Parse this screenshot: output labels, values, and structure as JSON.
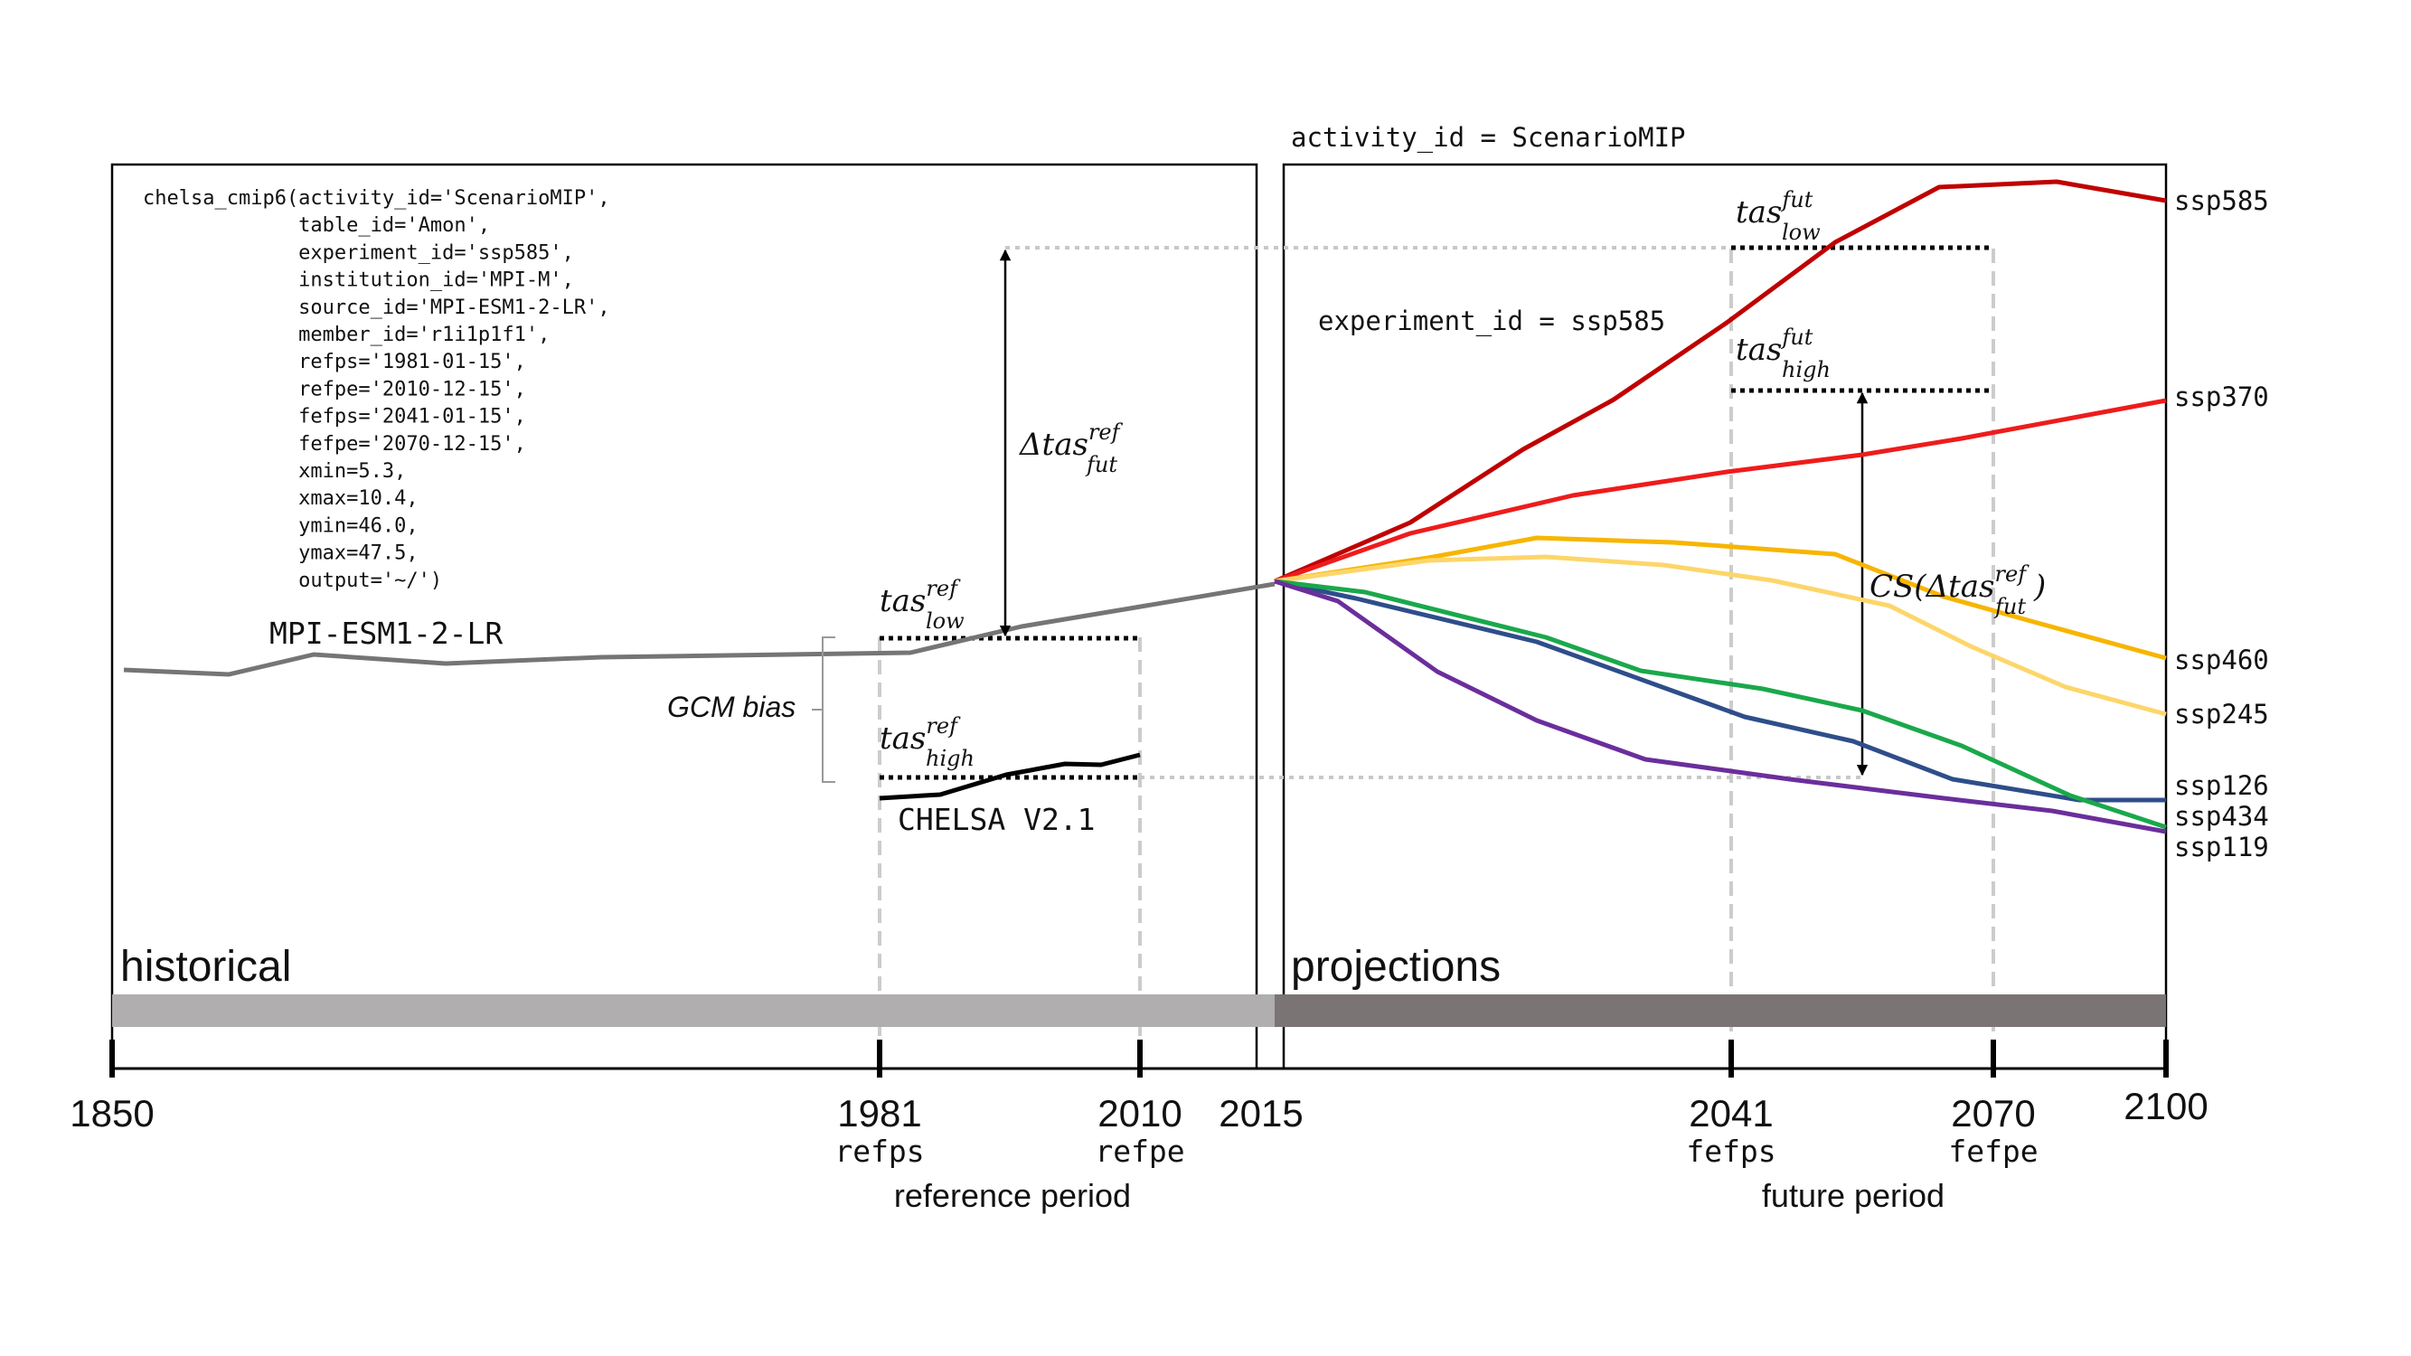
{
  "headers": {
    "activity": "activity_id = ScenarioMIP",
    "experiment": "experiment_id = ssp585"
  },
  "code_lines": [
    "chelsa_cmip6(activity_id='ScenarioMIP',",
    "             table_id='Amon',",
    "             experiment_id='ssp585',",
    "             institution_id='MPI-M',",
    "             source_id='MPI-ESM1-2-LR',",
    "             member_id='r1i1p1f1',",
    "             refps='1981-01-15',",
    "             refpe='2010-12-15',",
    "             fefps='2041-01-15',",
    "             fefpe='2070-12-15',",
    "             xmin=5.3,",
    "             xmax=10.4,",
    "             ymin=46.0,",
    "             ymax=47.5,",
    "             output='~/')"
  ],
  "labels": {
    "model": "MPI-ESM1-2-LR",
    "chelsa": "CHELSA V2.1",
    "gcm_bias": "GCM bias",
    "historical": "historical",
    "projections": "projections",
    "reference_period": "reference period",
    "future_period": "future period"
  },
  "math": {
    "tas": "tas",
    "delta_tas": "Δtas",
    "cs_open": "CS(Δtas",
    "cs_close": ")",
    "ref": "ref",
    "fut": "fut",
    "low": "low",
    "high": "high"
  },
  "axis": {
    "ticks": [
      {
        "year": "1850",
        "sub": ""
      },
      {
        "year": "1981",
        "sub": "refps"
      },
      {
        "year": "2010",
        "sub": "refpe"
      },
      {
        "year": "2015",
        "sub": ""
      },
      {
        "year": "2041",
        "sub": "fefps"
      },
      {
        "year": "2070",
        "sub": "fefpe"
      },
      {
        "year": "2100",
        "sub": ""
      }
    ]
  },
  "scenarios": [
    {
      "name": "ssp585",
      "color": "#c00000"
    },
    {
      "name": "ssp370",
      "color": "#ee1c1c"
    },
    {
      "name": "ssp460",
      "color": "#f7b500"
    },
    {
      "name": "ssp245",
      "color": "#fdd66a"
    },
    {
      "name": "ssp126",
      "color": "#2e4e8a"
    },
    {
      "name": "ssp434",
      "color": "#1aa84b"
    },
    {
      "name": "ssp119",
      "color": "#6b2e9c"
    }
  ],
  "colors": {
    "historical_band": "#b0aeae",
    "projection_band": "#7a7474",
    "model_line": "#757575",
    "chelsa_line": "#000000",
    "guide": "#c8c8c8"
  }
}
